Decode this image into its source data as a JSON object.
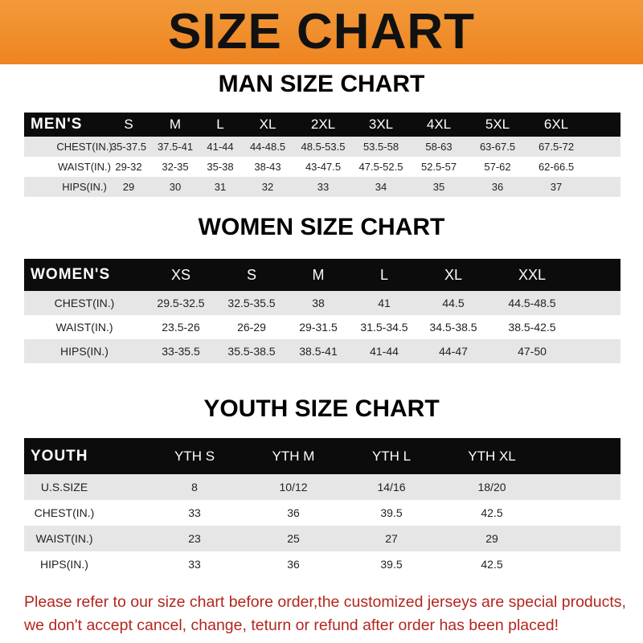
{
  "banner": {
    "title": "SIZE CHART",
    "color": "#ef8a24"
  },
  "men": {
    "title": "MAN SIZE CHART",
    "header": [
      "MEN'S",
      "S",
      "M",
      "L",
      "XL",
      "2XL",
      "3XL",
      "4XL",
      "5XL",
      "6XL"
    ],
    "rows": [
      [
        "CHEST(IN.)",
        "35-37.5",
        "37.5-41",
        "41-44",
        "44-48.5",
        "48.5-53.5",
        "53.5-58",
        "58-63",
        "63-67.5",
        "67.5-72"
      ],
      [
        "WAIST(IN.)",
        "29-32",
        "32-35",
        "35-38",
        "38-43",
        "43-47.5",
        "47.5-52.5",
        "52.5-57",
        "57-62",
        "62-66.5"
      ],
      [
        "HIPS(IN.)",
        "29",
        "30",
        "31",
        "32",
        "33",
        "34",
        "35",
        "36",
        "37"
      ]
    ]
  },
  "women": {
    "title": "WOMEN SIZE CHART",
    "header": [
      "WOMEN'S",
      "XS",
      "S",
      "M",
      "L",
      "XL",
      "XXL"
    ],
    "rows": [
      [
        "CHEST(IN.)",
        "29.5-32.5",
        "32.5-35.5",
        "38",
        "41",
        "44.5",
        "44.5-48.5"
      ],
      [
        "WAIST(IN.)",
        "23.5-26",
        "26-29",
        "29-31.5",
        "31.5-34.5",
        "34.5-38.5",
        "38.5-42.5"
      ],
      [
        "HIPS(IN.)",
        "33-35.5",
        "35.5-38.5",
        "38.5-41",
        "41-44",
        "44-47",
        "47-50"
      ]
    ]
  },
  "youth": {
    "title": "YOUTH SIZE CHART",
    "header": [
      "YOUTH",
      "YTH S",
      "YTH M",
      "YTH L",
      "YTH XL"
    ],
    "rows": [
      [
        "U.S.SIZE",
        "8",
        "10/12",
        "14/16",
        "18/20"
      ],
      [
        "CHEST(IN.)",
        "33",
        "36",
        "39.5",
        "42.5"
      ],
      [
        "WAIST(IN.)",
        "23",
        "25",
        "27",
        "29"
      ],
      [
        "HIPS(IN.)",
        "33",
        "36",
        "39.5",
        "42.5"
      ]
    ]
  },
  "footer": {
    "line1": "Please refer to our size chart before order,the customized jerseys are special products,",
    "line2": "we don't accept cancel, change, teturn or refund after order has been placed!",
    "color": "#b3261e"
  }
}
